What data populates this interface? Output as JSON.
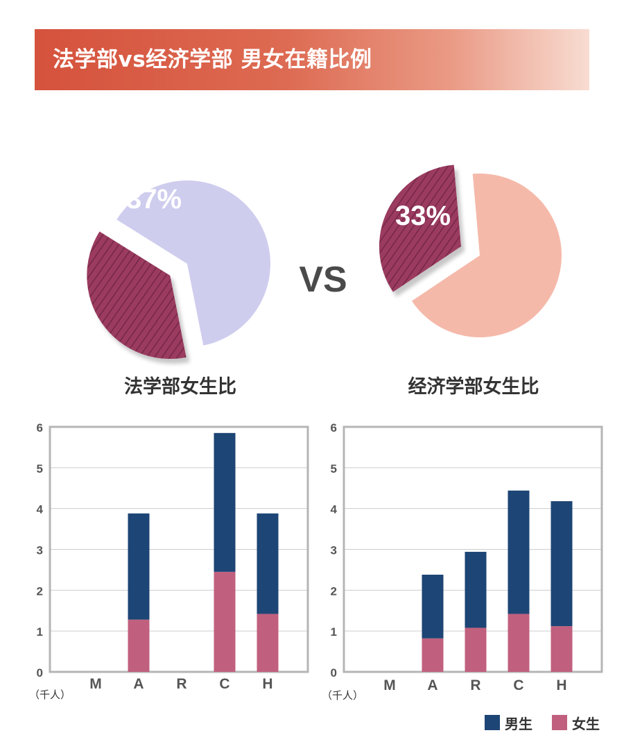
{
  "header": {
    "title": "法学部vs经济学部 男女在籍比例"
  },
  "vs_label": "VS",
  "colors": {
    "banner_start": "#d5523c",
    "female_slice": "#9a3a5e",
    "law_rest": "#cfcdee",
    "econ_rest": "#f5b9aa",
    "male_bar": "#1d4575",
    "female_bar": "#c0607e",
    "grid": "#cccccc",
    "frame": "#b5b5b5"
  },
  "legend": {
    "male": "男生",
    "female": "女生"
  },
  "chart_data": [
    {
      "type": "pie",
      "title": "法学部女生比",
      "labels": [
        "女生",
        "男生"
      ],
      "values": [
        37,
        63
      ],
      "highlight_label": "37%"
    },
    {
      "type": "pie",
      "title": "经济学部女生比",
      "labels": [
        "女生",
        "男生"
      ],
      "values": [
        33,
        67
      ],
      "highlight_label": "33%"
    },
    {
      "type": "bar",
      "stacked": true,
      "categories": [
        "M",
        "A",
        "R",
        "C",
        "H"
      ],
      "series": [
        {
          "name": "女生",
          "values": [
            0,
            1.28,
            0,
            2.45,
            1.42
          ]
        },
        {
          "name": "男生",
          "values": [
            0,
            2.6,
            0,
            3.4,
            2.46
          ]
        }
      ],
      "yticks": [
        0,
        1,
        2,
        3,
        4,
        5,
        6
      ],
      "ylim": [
        0,
        6
      ],
      "unit": "（千人）",
      "grid": true
    },
    {
      "type": "bar",
      "stacked": true,
      "categories": [
        "M",
        "A",
        "R",
        "C",
        "H"
      ],
      "series": [
        {
          "name": "女生",
          "values": [
            0,
            0.82,
            1.08,
            1.42,
            1.12
          ]
        },
        {
          "name": "男生",
          "values": [
            0,
            1.56,
            1.86,
            3.02,
            3.06
          ]
        }
      ],
      "yticks": [
        0,
        1,
        2,
        3,
        4,
        5,
        6
      ],
      "ylim": [
        0,
        6
      ],
      "unit": "（千人）",
      "grid": true
    }
  ]
}
